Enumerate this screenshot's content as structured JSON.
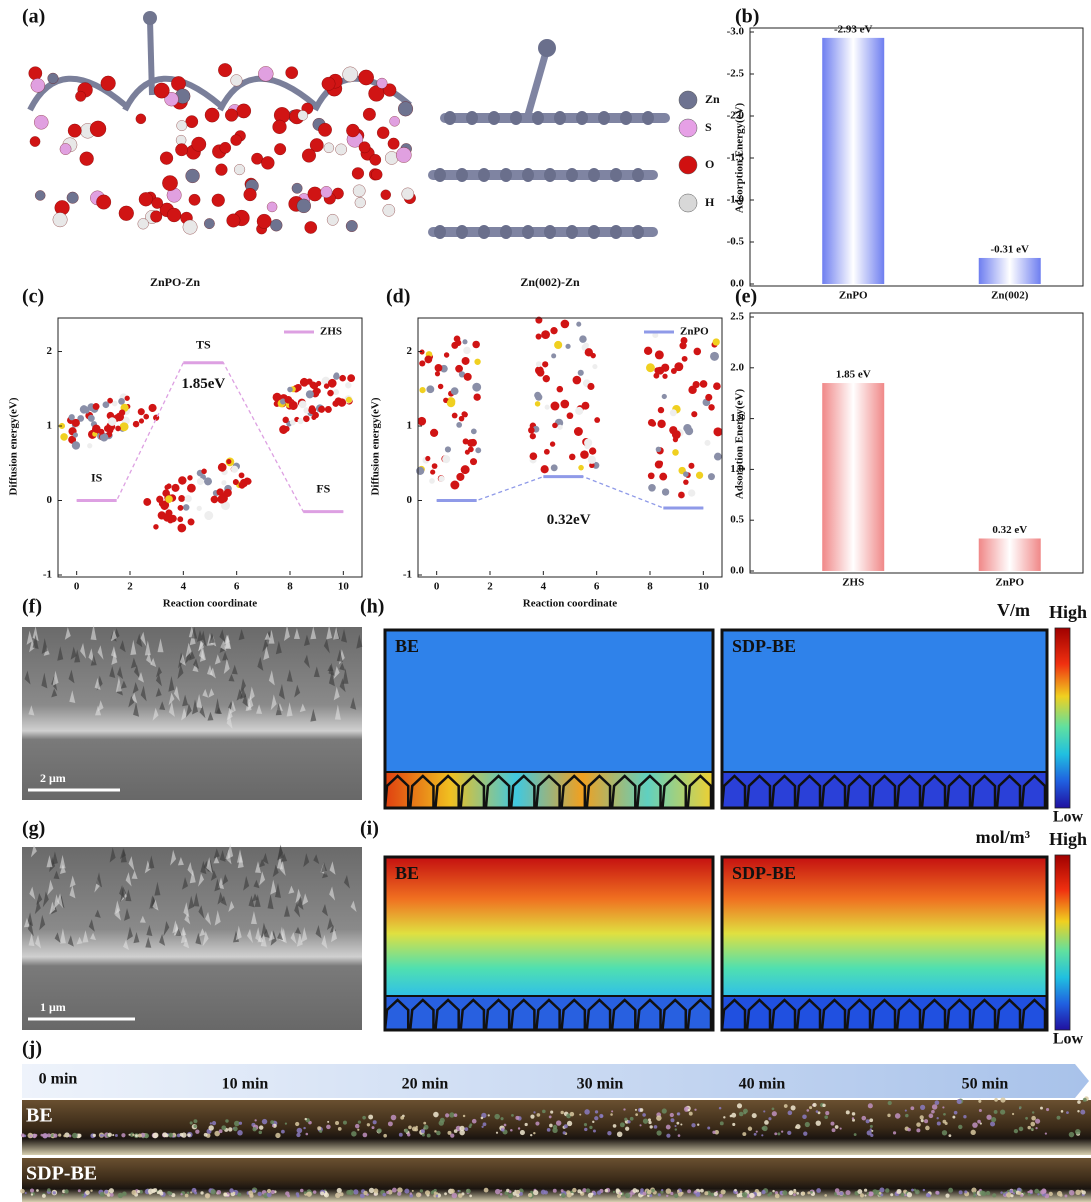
{
  "panel_labels": [
    "(a)",
    "(b)",
    "(c)",
    "(d)",
    "(e)",
    "(f)",
    "(h)",
    "(g)",
    "(i)",
    "(j)"
  ],
  "structures": {
    "labels": [
      "ZnPO-Zn",
      "Zn(002)-Zn"
    ],
    "legend": [
      "Zn",
      "S",
      "O",
      "H"
    ]
  },
  "chart_data": [
    {
      "type": "bar",
      "ylabel": "Adsorption Energy(eV)",
      "categories": [
        "ZnPO",
        "Zn(002)"
      ],
      "values": [
        -2.93,
        -0.31
      ],
      "value_labels": [
        "-2.93 eV",
        "-0.31 eV"
      ],
      "color": "#6e7ef0",
      "ylim": [
        0,
        -3.0
      ],
      "yticks": [
        {
          "value": 0,
          "label": "0.0"
        },
        -0.5,
        {
          "value": -1,
          "label": "-1.0"
        },
        -1.5,
        {
          "value": -2,
          "label": "-2.0"
        },
        -2.5,
        {
          "value": -3,
          "label": "-3.0"
        }
      ]
    },
    {
      "type": "line",
      "xlabel": "Reaction coordinate",
      "ylabel": "Diffusion energy(eV)",
      "x": [
        0,
        1.5,
        4,
        5.5,
        8.5,
        10
      ],
      "series": [
        {
          "name": "ZHS",
          "color": "#dda0e2",
          "values": [
            0,
            0,
            1.85,
            1.85,
            -0.15,
            -0.15
          ]
        }
      ],
      "annotations": [
        "IS",
        "TS",
        "FS",
        "1.85eV"
      ],
      "xlim": [
        -0.7,
        10.7
      ],
      "xticks": [
        0,
        2,
        4,
        6,
        8,
        10
      ],
      "ylim": [
        -1,
        2.45
      ],
      "yticks": [
        -1,
        0,
        1,
        2
      ]
    },
    {
      "type": "line",
      "xlabel": "Reaction coordinate",
      "ylabel": "Diffusion energy(eV)",
      "x": [
        0,
        1.5,
        4,
        5.5,
        8.5,
        10
      ],
      "series": [
        {
          "name": "ZnPO",
          "color": "#8f9ae8",
          "values": [
            0,
            0,
            0.32,
            0.32,
            -0.1,
            -0.1
          ]
        }
      ],
      "annotations": [
        "0.32eV"
      ],
      "xlim": [
        -0.7,
        10.7
      ],
      "xticks": [
        0,
        2,
        4,
        6,
        8,
        10
      ],
      "ylim": [
        -1,
        2.45
      ],
      "yticks": [
        -1,
        0,
        1,
        2
      ]
    },
    {
      "type": "bar",
      "ylabel": "Adsorption Energy(eV)",
      "categories": [
        "ZHS",
        "ZnPO"
      ],
      "values": [
        1.85,
        0.32
      ],
      "value_labels": [
        "1.85 eV",
        "0.32 eV"
      ],
      "color": "#f08888",
      "ylim": [
        0,
        2.5
      ],
      "yticks": [
        {
          "value": 0,
          "label": "0.0"
        },
        0.5,
        {
          "value": 1,
          "label": "1.0"
        },
        1.5,
        {
          "value": 2,
          "label": "2.0"
        },
        2.5
      ]
    }
  ],
  "sem": {
    "f_scale": "2 μm",
    "g_scale": "1 μm"
  },
  "simulation": {
    "h": {
      "unit": "V/m",
      "high": "High",
      "low": "Low",
      "panels": [
        "BE",
        "SDP-BE"
      ]
    },
    "i": {
      "unit": "mol/m³",
      "high": "High",
      "low": "Low",
      "panels": [
        "BE",
        "SDP-BE"
      ]
    }
  },
  "optical": {
    "times": [
      "0 min",
      "10 min",
      "20 min",
      "30 min",
      "40 min",
      "50 min"
    ],
    "rows": [
      "BE",
      "SDP-BE"
    ]
  }
}
